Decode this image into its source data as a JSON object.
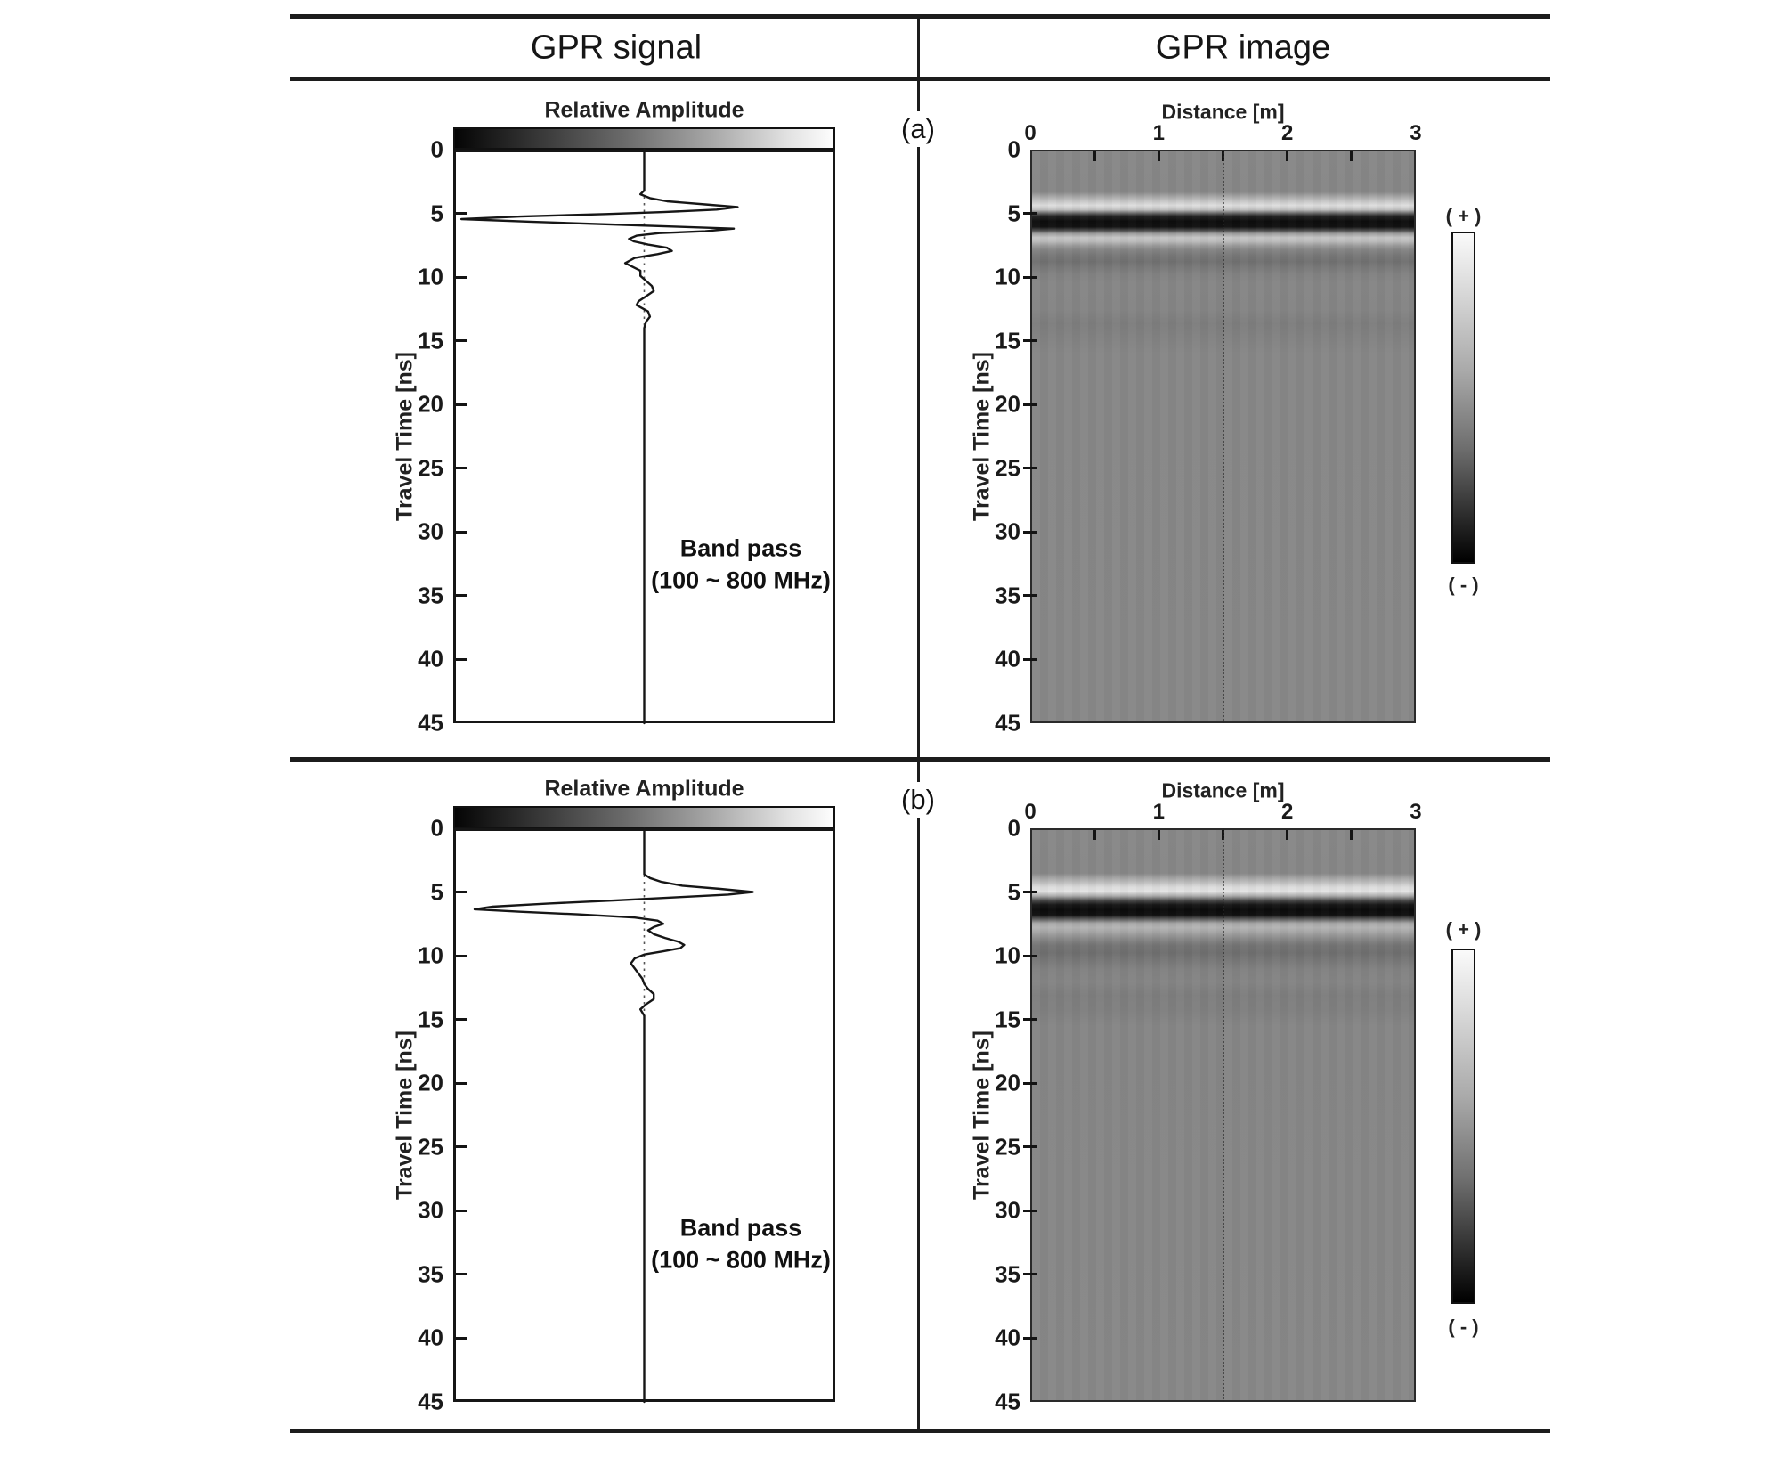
{
  "figure": {
    "header": {
      "left": "GPR signal",
      "right": "GPR image"
    },
    "rows": [
      {
        "tag": "(a)",
        "signal": {
          "title": "Relative Amplitude",
          "ylabel": "Travel Time [ns]",
          "annotation_line1": "Band pass",
          "annotation_line2": "(100 ~ 800 MHz)"
        },
        "image": {
          "xlabel": "Distance [m]",
          "ylabel": "Travel Time [ns]",
          "colorbar_plus": "( + )",
          "colorbar_minus": "( - )"
        }
      },
      {
        "tag": "(b)",
        "signal": {
          "title": "Relative Amplitude",
          "ylabel": "Travel Time [ns]",
          "annotation_line1": "Band pass",
          "annotation_line2": "(100 ~ 800 MHz)"
        },
        "image": {
          "xlabel": "Distance [m]",
          "ylabel": "Travel Time [ns]",
          "colorbar_plus": "( + )",
          "colorbar_minus": "( - )"
        }
      }
    ]
  },
  "chart_data": [
    {
      "id": "signal-a",
      "type": "line",
      "panel": "(a)",
      "title": "Relative Amplitude",
      "xlabel": "Relative Amplitude",
      "ylabel": "Travel Time [ns]",
      "ylim": [
        0,
        45
      ],
      "xlim": [
        -1,
        1
      ],
      "yticks": [
        0,
        5,
        10,
        15,
        20,
        25,
        30,
        35,
        40,
        45
      ],
      "annotation": "Band pass (100 ~ 800 MHz)",
      "legend_position": "none",
      "grid": false,
      "series": [
        {
          "name": "wiggle-trace-a",
          "points_t_amp": [
            [
              0,
              0
            ],
            [
              3.2,
              0
            ],
            [
              3.5,
              -0.02
            ],
            [
              3.8,
              0.03
            ],
            [
              4.05,
              0.12
            ],
            [
              4.3,
              0.32
            ],
            [
              4.5,
              0.49
            ],
            [
              4.7,
              0.38
            ],
            [
              4.9,
              0.1
            ],
            [
              5.05,
              -0.2
            ],
            [
              5.25,
              -0.65
            ],
            [
              5.45,
              -0.96
            ],
            [
              5.65,
              -0.6
            ],
            [
              5.85,
              -0.22
            ],
            [
              6.05,
              0.18
            ],
            [
              6.2,
              0.47
            ],
            [
              6.4,
              0.32
            ],
            [
              6.55,
              0.08
            ],
            [
              6.75,
              -0.04
            ],
            [
              7.0,
              -0.08
            ],
            [
              7.2,
              -0.055
            ],
            [
              7.45,
              0.02
            ],
            [
              7.7,
              0.12
            ],
            [
              7.95,
              0.145
            ],
            [
              8.2,
              0.07
            ],
            [
              8.5,
              -0.05
            ],
            [
              8.9,
              -0.1
            ],
            [
              9.2,
              -0.06
            ],
            [
              9.5,
              -0.02
            ],
            [
              9.9,
              -0.02
            ],
            [
              10.3,
              0.01
            ],
            [
              10.7,
              0.04
            ],
            [
              11.1,
              0.05
            ],
            [
              11.5,
              0.01
            ],
            [
              11.9,
              -0.03
            ],
            [
              12.2,
              -0.04
            ],
            [
              12.7,
              0.02
            ],
            [
              13.1,
              0.03
            ],
            [
              13.5,
              0.01
            ],
            [
              14.0,
              0
            ],
            [
              15,
              0
            ],
            [
              45,
              0
            ]
          ]
        }
      ]
    },
    {
      "id": "image-a",
      "type": "heatmap",
      "panel": "(a)",
      "xlabel": "Distance [m]",
      "xlim": [
        0,
        3
      ],
      "xticks": [
        0,
        1,
        2,
        3
      ],
      "xticks_minor": [
        0.5,
        1,
        1.5,
        2,
        2.5
      ],
      "ylabel": "Travel Time [ns]",
      "ylim": [
        0,
        45
      ],
      "yticks": [
        0,
        5,
        10,
        15,
        20,
        25,
        30,
        35,
        40,
        45
      ],
      "colorbar": {
        "top_label": "( + )",
        "bottom_label": "( - )",
        "top_color": "#ffffff",
        "bottom_color": "#000000"
      },
      "background_gray": "#878787",
      "profile_marker_x": 1.5,
      "gradient_stops_t_color": [
        [
          0,
          "#888888"
        ],
        [
          3.2,
          "#878787"
        ],
        [
          3.8,
          "#bcbcbc"
        ],
        [
          4.25,
          "#dedede"
        ],
        [
          4.6,
          "#c2c2c2"
        ],
        [
          4.85,
          "#6f6f6f"
        ],
        [
          5.1,
          "#242424"
        ],
        [
          5.5,
          "#0d0d0d"
        ],
        [
          5.95,
          "#111111"
        ],
        [
          6.25,
          "#4f4f4f"
        ],
        [
          6.5,
          "#9e9e9e"
        ],
        [
          6.8,
          "#c6c6c6"
        ],
        [
          7.1,
          "#bdbdbd"
        ],
        [
          7.45,
          "#999999"
        ],
        [
          7.8,
          "#848484"
        ],
        [
          8.2,
          "#787878"
        ],
        [
          8.7,
          "#717171"
        ],
        [
          9.2,
          "#7a7a7a"
        ],
        [
          9.7,
          "#828282"
        ],
        [
          10.4,
          "#868686"
        ],
        [
          12.5,
          "#858585"
        ],
        [
          13.6,
          "#7e7e7e"
        ],
        [
          14.6,
          "#828282"
        ],
        [
          16,
          "#878787"
        ],
        [
          45,
          "#888888"
        ]
      ]
    },
    {
      "id": "signal-b",
      "type": "line",
      "panel": "(b)",
      "title": "Relative Amplitude",
      "xlabel": "Relative Amplitude",
      "ylabel": "Travel Time [ns]",
      "ylim": [
        0,
        45
      ],
      "xlim": [
        -1,
        1
      ],
      "yticks": [
        0,
        5,
        10,
        15,
        20,
        25,
        30,
        35,
        40,
        45
      ],
      "annotation": "Band pass (100 ~ 800 MHz)",
      "legend_position": "none",
      "grid": false,
      "series": [
        {
          "name": "wiggle-trace-b",
          "points_t_amp": [
            [
              0,
              0
            ],
            [
              3.6,
              0
            ],
            [
              3.9,
              0.03
            ],
            [
              4.2,
              0.09
            ],
            [
              4.5,
              0.2
            ],
            [
              4.75,
              0.4
            ],
            [
              5.0,
              0.57
            ],
            [
              5.2,
              0.44
            ],
            [
              5.4,
              0.18
            ],
            [
              5.65,
              -0.15
            ],
            [
              5.9,
              -0.5
            ],
            [
              6.15,
              -0.8
            ],
            [
              6.35,
              -0.89
            ],
            [
              6.55,
              -0.65
            ],
            [
              6.75,
              -0.35
            ],
            [
              7.0,
              -0.05
            ],
            [
              7.25,
              0.07
            ],
            [
              7.5,
              0.1
            ],
            [
              7.75,
              0.05
            ],
            [
              8.0,
              0.02
            ],
            [
              8.3,
              0.05
            ],
            [
              8.6,
              0.11
            ],
            [
              8.9,
              0.18
            ],
            [
              9.15,
              0.21
            ],
            [
              9.4,
              0.19
            ],
            [
              9.65,
              0.1
            ],
            [
              9.9,
              0.0
            ],
            [
              10.2,
              -0.05
            ],
            [
              10.6,
              -0.07
            ],
            [
              11.0,
              -0.05
            ],
            [
              11.4,
              -0.03
            ],
            [
              11.8,
              -0.01
            ],
            [
              12.2,
              0.0
            ],
            [
              12.6,
              0.02
            ],
            [
              13.0,
              0.05
            ],
            [
              13.4,
              0.05
            ],
            [
              13.8,
              0.01
            ],
            [
              14.2,
              -0.02
            ],
            [
              14.7,
              0.0
            ],
            [
              16,
              0
            ],
            [
              45,
              0
            ]
          ]
        }
      ]
    },
    {
      "id": "image-b",
      "type": "heatmap",
      "panel": "(b)",
      "xlabel": "Distance [m]",
      "xlim": [
        0,
        3
      ],
      "xticks": [
        0,
        1,
        2,
        3
      ],
      "xticks_minor": [
        0.5,
        1,
        1.5,
        2,
        2.5
      ],
      "ylabel": "Travel Time [ns]",
      "ylim": [
        0,
        45
      ],
      "yticks": [
        0,
        5,
        10,
        15,
        20,
        25,
        30,
        35,
        40,
        45
      ],
      "colorbar": {
        "top_label": "( + )",
        "bottom_label": "( - )",
        "top_color": "#ffffff",
        "bottom_color": "#000000"
      },
      "background_gray": "#878787",
      "profile_marker_x": 1.5,
      "gradient_stops_t_color": [
        [
          0,
          "#888888"
        ],
        [
          3.4,
          "#878787"
        ],
        [
          4.0,
          "#b5b5b5"
        ],
        [
          4.5,
          "#dcdcdc"
        ],
        [
          4.85,
          "#e4e4e4"
        ],
        [
          5.2,
          "#aaaaaa"
        ],
        [
          5.55,
          "#4a4a4a"
        ],
        [
          5.9,
          "#161616"
        ],
        [
          6.3,
          "#0b0b0b"
        ],
        [
          6.7,
          "#101010"
        ],
        [
          7.0,
          "#565656"
        ],
        [
          7.35,
          "#a6a6a6"
        ],
        [
          7.7,
          "#b5b5b5"
        ],
        [
          8.1,
          "#a3a3a3"
        ],
        [
          8.6,
          "#888888"
        ],
        [
          9.1,
          "#747474"
        ],
        [
          9.7,
          "#6f6f6f"
        ],
        [
          10.3,
          "#787878"
        ],
        [
          11.0,
          "#828282"
        ],
        [
          12.0,
          "#858585"
        ],
        [
          13.0,
          "#7e7e7e"
        ],
        [
          14.2,
          "#808080"
        ],
        [
          15.5,
          "#868686"
        ],
        [
          45,
          "#888888"
        ]
      ]
    }
  ]
}
